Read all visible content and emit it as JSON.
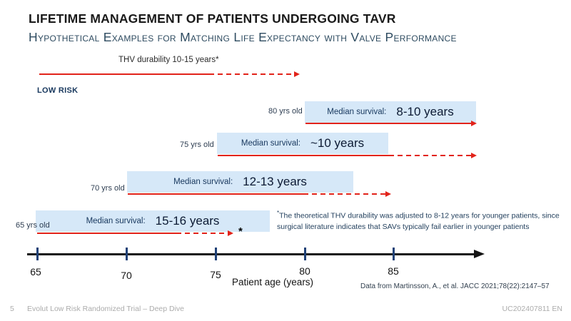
{
  "slide": {
    "title": "LIFETIME MANAGEMENT OF PATIENTS UNDERGOING TAVR",
    "subtitle": "Hypothetical Examples for Matching Life Expectancy with Valve Performance",
    "risk_label": "LOW RISK",
    "thv_arrow_label": "THV durability 10-15 years*",
    "asterisk_marker": "*"
  },
  "rows": [
    {
      "age": "80 yrs old",
      "label": "Median survival:",
      "value": "8-10 years"
    },
    {
      "age": "75 yrs old",
      "label": "Median survival:",
      "value": "~10 years"
    },
    {
      "age": "70 yrs old",
      "label": "Median survival:",
      "value": "12-13 years"
    },
    {
      "age": "65 yrs old",
      "label": "Median survival:",
      "value": "15-16 years"
    }
  ],
  "footnote": {
    "marker": "*",
    "text": "The theoretical THV durability was adjusted to 8-12 years for younger patients, since surgical literature indicates that SAVs typically fail earlier in younger patients"
  },
  "axis": {
    "ticks": [
      "65",
      "70",
      "75",
      "80",
      "85"
    ],
    "label": "Patient age (years)"
  },
  "citation": "Data from Martinsson, A., et al. JACC 2021;78(22):2147–57",
  "footer": {
    "page": "5",
    "left": "Evolut Low Risk Randomized Trial – Deep Dive",
    "right": "UC202407811 EN"
  },
  "colors": {
    "accent_red": "#e2231a",
    "box_blue": "#d6e8f8",
    "navy_text": "#17375d",
    "subtitle_blue": "#2e4b60",
    "tick_navy": "#1f4177",
    "footer_gray": "#acacac"
  },
  "chart_data": {
    "type": "bar",
    "subtype": "horizontal-timeline-spans",
    "title": "LIFETIME MANAGEMENT OF PATIENTS UNDERGOING TAVR",
    "subtitle": "Hypothetical Examples for Matching Life Expectancy with Valve Performance",
    "xlabel": "Patient age (years)",
    "x_ticks": [
      65,
      70,
      75,
      80,
      85
    ],
    "xlim": [
      65,
      90
    ],
    "grid": false,
    "legend": false,
    "series": [
      {
        "name": "THV durability",
        "annotation": "THV durability 10-15 years*",
        "kind": "arrow",
        "solid_span": [
          65,
          74.5
        ],
        "dashed_span": [
          74.5,
          79.5
        ]
      },
      {
        "name": "80 yrs old",
        "median_survival": "8-10 years",
        "box_span": [
          80,
          89.5
        ],
        "solid_span": [
          80,
          89.5
        ],
        "dashed_span": null
      },
      {
        "name": "75 yrs old",
        "median_survival": "~10 years",
        "box_span": [
          75,
          84.5
        ],
        "solid_span": [
          75,
          84.5
        ],
        "dashed_span": [
          84.5,
          89.5
        ]
      },
      {
        "name": "70 yrs old",
        "median_survival": "12-13 years",
        "box_span": [
          70,
          82.5
        ],
        "solid_span": [
          70,
          80
        ],
        "dashed_span": [
          80,
          85
        ]
      },
      {
        "name": "65 yrs old",
        "median_survival": "15-16 years",
        "box_span": [
          65,
          78
        ],
        "solid_span": [
          65,
          73
        ],
        "dashed_span": [
          73,
          76
        ]
      }
    ]
  }
}
